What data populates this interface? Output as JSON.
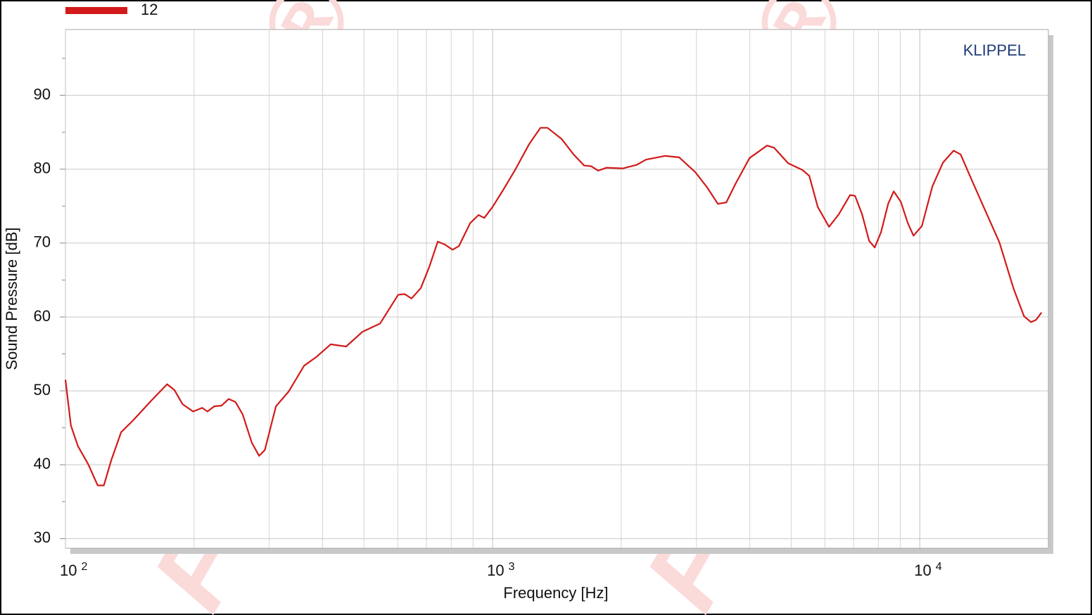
{
  "chart_data": {
    "type": "line",
    "watermark": "FCE®",
    "brand": "KLIPPEL",
    "x_label": "Frequency  [Hz]",
    "y_label": "Sound Pressure  [dB]",
    "log_x": true,
    "grid": true,
    "legend": "top-left",
    "xlim": [
      100,
      20000
    ],
    "ylim": [
      28.7,
      98.9
    ],
    "xticks": [
      {
        "value": 100,
        "label": "10",
        "exp": "2"
      },
      {
        "value": 1000,
        "label": "10",
        "exp": "3"
      },
      {
        "value": 10000,
        "label": "10",
        "exp": "4"
      }
    ],
    "xminor": [
      200,
      300,
      400,
      500,
      600,
      700,
      800,
      900,
      2000,
      3000,
      4000,
      5000,
      6000,
      7000,
      8000,
      9000
    ],
    "yticks": [
      30,
      40,
      50,
      60,
      70,
      80,
      90
    ],
    "yminor": [
      35,
      45,
      55,
      65,
      75,
      85,
      95
    ],
    "x": [
      100,
      103,
      107,
      113,
      119,
      123,
      128,
      135,
      144,
      159,
      173,
      180,
      188,
      199,
      209,
      215,
      223,
      232,
      241,
      250,
      260,
      273,
      284,
      293,
      311,
      333,
      362,
      387,
      418,
      454,
      496,
      545,
      601,
      622,
      646,
      679,
      711,
      744,
      773,
      806,
      834,
      886,
      927,
      956,
      1000,
      1059,
      1129,
      1218,
      1294,
      1344,
      1450,
      1547,
      1637,
      1701,
      1766,
      1849,
      2018,
      2177,
      2287,
      2533,
      2733,
      2982,
      3181,
      3368,
      3524,
      3702,
      3994,
      4390,
      4560,
      4920,
      5308,
      5512,
      5769,
      6131,
      6464,
      6869,
      7053,
      7327,
      7610,
      7845,
      8117,
      8432,
      8690,
      9026,
      9376,
      9665,
      10113,
      10707,
      11335,
      11999,
      12462,
      13193,
      14231,
      15359,
      16565,
      17535,
      18213,
      18704,
      19280
    ],
    "series": [
      {
        "name": "12",
        "color": "#d21a1a",
        "values": [
          51.5,
          45.3,
          42.5,
          40.1,
          37.2,
          37.2,
          40.6,
          44.4,
          46,
          48.7,
          50.9,
          50.1,
          48.2,
          47.2,
          47.7,
          47.2,
          47.9,
          48,
          48.9,
          48.5,
          46.8,
          43,
          41.2,
          42,
          47.9,
          49.9,
          53.4,
          54.6,
          56.3,
          56,
          58,
          59.1,
          63,
          63.1,
          62.5,
          63.9,
          66.8,
          70.2,
          69.8,
          69.1,
          69.6,
          72.7,
          73.8,
          73.4,
          74.9,
          77.2,
          79.9,
          83.4,
          85.6,
          85.6,
          84.1,
          82,
          80.5,
          80.4,
          79.8,
          80.2,
          80.1,
          80.6,
          81.3,
          81.8,
          81.6,
          79.6,
          77.5,
          75.3,
          75.5,
          78,
          81.5,
          83.2,
          82.9,
          80.8,
          79.9,
          79.1,
          74.9,
          72.2,
          73.9,
          76.5,
          76.4,
          73.9,
          70.3,
          69.4,
          71.5,
          75.3,
          77,
          75.6,
          72.7,
          71,
          72.3,
          77.7,
          80.9,
          82.5,
          82,
          78.7,
          74.4,
          70.1,
          63.9,
          60.1,
          59.3,
          59.6,
          60.6
        ]
      }
    ]
  }
}
